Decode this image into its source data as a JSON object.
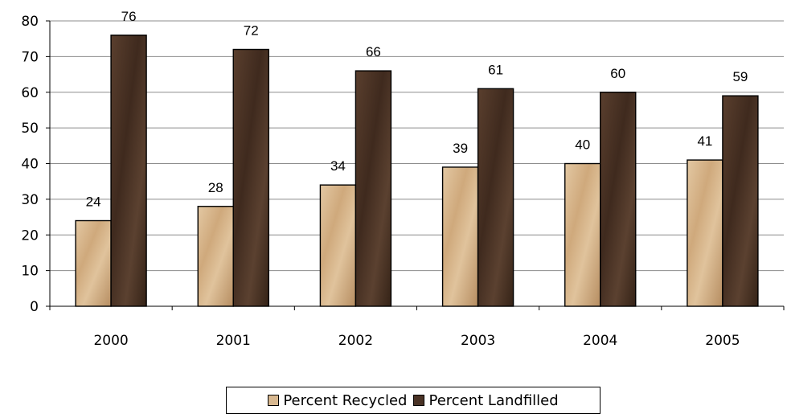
{
  "chart_data": {
    "type": "bar",
    "categories": [
      "2000",
      "2001",
      "2002",
      "2003",
      "2004",
      "2005"
    ],
    "series": [
      {
        "name": "Percent Recycled",
        "values": [
          24,
          28,
          34,
          39,
          40,
          41
        ],
        "color": "#d8b890"
      },
      {
        "name": "Percent Landfilled",
        "values": [
          76,
          72,
          66,
          61,
          60,
          59
        ],
        "color": "#4a3326"
      }
    ],
    "ylim": [
      0,
      80
    ],
    "yticks": [
      "0",
      "10",
      "20",
      "30",
      "40",
      "50",
      "60",
      "70",
      "80"
    ],
    "grid": true,
    "data_labels": true,
    "legend_position": "bottom"
  }
}
